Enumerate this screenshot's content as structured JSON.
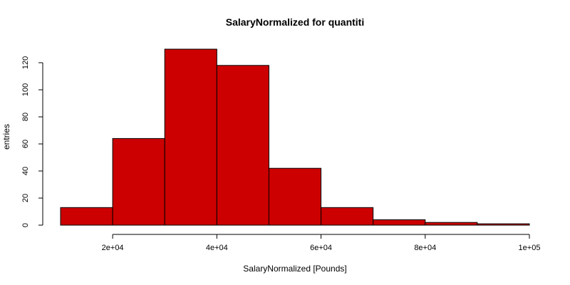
{
  "chart_data": {
    "type": "bar",
    "title": "SalaryNormalized for quantiti",
    "xlabel": "SalaryNormalized [Pounds]",
    "ylabel": "entries",
    "bins": [
      {
        "start": 10000,
        "end": 20000,
        "count": 13
      },
      {
        "start": 20000,
        "end": 30000,
        "count": 64
      },
      {
        "start": 30000,
        "end": 40000,
        "count": 130
      },
      {
        "start": 40000,
        "end": 50000,
        "count": 118
      },
      {
        "start": 50000,
        "end": 60000,
        "count": 42
      },
      {
        "start": 60000,
        "end": 70000,
        "count": 13
      },
      {
        "start": 70000,
        "end": 80000,
        "count": 4
      },
      {
        "start": 80000,
        "end": 90000,
        "count": 2
      },
      {
        "start": 90000,
        "end": 100000,
        "count": 1
      }
    ],
    "xlim": [
      10000,
      100000
    ],
    "ylim": [
      0,
      130
    ],
    "xticks": [
      {
        "value": 20000,
        "label": "2e+04"
      },
      {
        "value": 40000,
        "label": "4e+04"
      },
      {
        "value": 60000,
        "label": "6e+04"
      },
      {
        "value": 80000,
        "label": "8e+04"
      },
      {
        "value": 100000,
        "label": "1e+05"
      }
    ],
    "yticks": [
      {
        "value": 0,
        "label": "0"
      },
      {
        "value": 20,
        "label": "20"
      },
      {
        "value": 40,
        "label": "40"
      },
      {
        "value": 60,
        "label": "60"
      },
      {
        "value": 80,
        "label": "80"
      },
      {
        "value": 100,
        "label": "100"
      },
      {
        "value": 120,
        "label": "120"
      }
    ],
    "bar_color": "#cc0000",
    "bar_edge_color": "#000000",
    "grid": false,
    "legend": "none"
  }
}
